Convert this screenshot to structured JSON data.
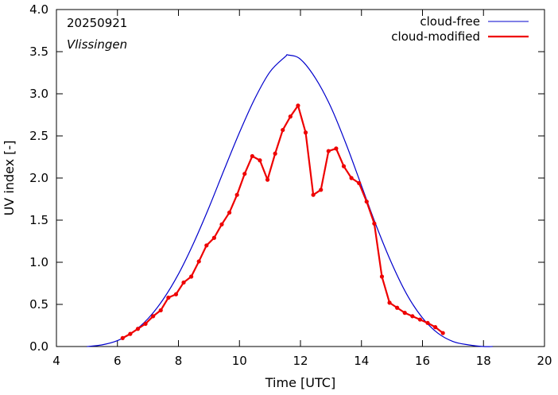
{
  "chart_data": {
    "type": "line",
    "date_label": "20250921",
    "location": "Vlissingen",
    "xlabel": "Time  [UTC]",
    "ylabel": "UV index  [-]",
    "xlim": [
      4,
      20
    ],
    "ylim": [
      0,
      4.0
    ],
    "xticks": [
      "4",
      "6",
      "8",
      "10",
      "12",
      "14",
      "16",
      "18",
      "20"
    ],
    "yticks": [
      "0.0",
      "0.5",
      "1.0",
      "1.5",
      "2.0",
      "2.5",
      "3.0",
      "3.5",
      "4.0"
    ],
    "grid": false,
    "legend_position": "top-right",
    "series": [
      {
        "name": "cloud-free",
        "color": "#0000cc",
        "marker": "none",
        "x": [
          5.0,
          5.5,
          6.0,
          6.5,
          7.0,
          7.5,
          8.0,
          8.5,
          9.0,
          9.5,
          10.0,
          10.5,
          11.0,
          11.5,
          11.6,
          12.0,
          12.5,
          13.0,
          13.5,
          14.0,
          14.5,
          15.0,
          15.5,
          16.0,
          16.5,
          17.0,
          17.5,
          18.0,
          18.3
        ],
        "y": [
          0.0,
          0.02,
          0.07,
          0.17,
          0.33,
          0.56,
          0.86,
          1.23,
          1.65,
          2.1,
          2.54,
          2.94,
          3.26,
          3.44,
          3.46,
          3.41,
          3.18,
          2.84,
          2.4,
          1.91,
          1.42,
          0.98,
          0.61,
          0.34,
          0.16,
          0.06,
          0.02,
          0.0,
          0.0
        ]
      },
      {
        "name": "cloud-modified",
        "color": "#ee0000",
        "marker": "dot",
        "x": [
          6.17,
          6.42,
          6.67,
          6.92,
          7.17,
          7.42,
          7.67,
          7.92,
          8.17,
          8.42,
          8.67,
          8.92,
          9.17,
          9.42,
          9.67,
          9.92,
          10.17,
          10.42,
          10.67,
          10.92,
          11.17,
          11.42,
          11.67,
          11.92,
          12.17,
          12.42,
          12.67,
          12.92,
          13.17,
          13.42,
          13.67,
          13.92,
          14.17,
          14.42,
          14.67,
          14.92,
          15.17,
          15.42,
          15.67,
          15.92,
          16.17,
          16.42,
          16.67
        ],
        "y": [
          0.1,
          0.15,
          0.21,
          0.27,
          0.36,
          0.43,
          0.58,
          0.62,
          0.76,
          0.83,
          1.01,
          1.2,
          1.29,
          1.45,
          1.59,
          1.8,
          2.05,
          2.26,
          2.21,
          1.98,
          2.29,
          2.57,
          2.73,
          2.86,
          2.54,
          1.8,
          1.86,
          2.32,
          2.35,
          2.14,
          2.0,
          1.94,
          1.72,
          1.46,
          0.83,
          0.52,
          0.46,
          0.4,
          0.36,
          0.32,
          0.28,
          0.23,
          0.16
        ]
      }
    ]
  }
}
